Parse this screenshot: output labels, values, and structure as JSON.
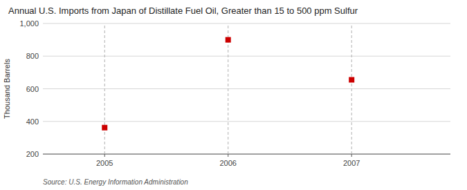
{
  "chart_data": {
    "type": "scatter",
    "title": "Annual U.S. Imports from Japan of Distillate Fuel Oil, Greater than 15 to 500 ppm Sulfur",
    "ylabel": "Thousand Barrels",
    "annotations": [
      "Source: U.S. Energy Information Administration"
    ],
    "x": [
      2005,
      2006,
      2007
    ],
    "values": [
      362,
      900,
      655
    ],
    "xlim": [
      2004.5,
      2007.8
    ],
    "ylim": [
      200,
      1000
    ],
    "xticks": [
      2005,
      2006,
      2007
    ],
    "yticks": [
      200,
      400,
      600,
      800,
      {
        "value": 1000,
        "label": "1,000"
      }
    ],
    "grid": true,
    "color": "#cc0000",
    "marker": "square"
  }
}
